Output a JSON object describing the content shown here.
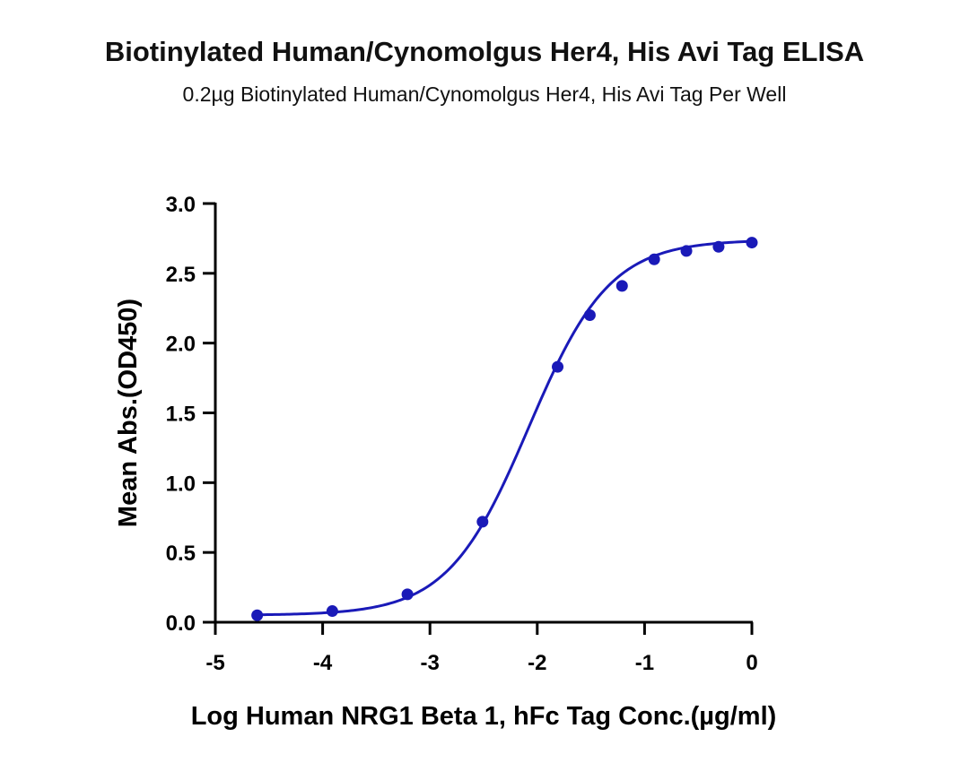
{
  "title": "Biotinylated Human/Cynomolgus Her4, His Avi Tag ELISA",
  "subtitle": "0.2µg Biotinylated Human/Cynomolgus Her4, His Avi Tag Per Well",
  "chart_data": {
    "type": "scatter",
    "title": "Biotinylated Human/Cynomolgus Her4, His Avi Tag ELISA",
    "subtitle": "0.2µg Biotinylated Human/Cynomolgus Her4, His Avi Tag Per Well",
    "xlabel": "Log Human NRG1 Beta 1, hFc Tag Conc.(µg/ml)",
    "ylabel": "Mean Abs.(OD450)",
    "xlim": [
      -5,
      0
    ],
    "ylim": [
      0,
      3.0
    ],
    "x_ticks": [
      "-5",
      "-4",
      "-3",
      "-2",
      "-1",
      "0"
    ],
    "y_ticks": [
      "0.0",
      "0.5",
      "1.0",
      "1.5",
      "2.0",
      "2.5",
      "3.0"
    ],
    "grid": false,
    "legend": "none",
    "color": "#1a1ab8",
    "series": [
      {
        "points": [
          {
            "x": -4.61,
            "y": 0.05
          },
          {
            "x": -3.91,
            "y": 0.08
          },
          {
            "x": -3.21,
            "y": 0.2
          },
          {
            "x": -2.51,
            "y": 0.72
          },
          {
            "x": -1.81,
            "y": 1.83
          },
          {
            "x": -1.51,
            "y": 2.2
          },
          {
            "x": -1.21,
            "y": 2.41
          },
          {
            "x": -0.91,
            "y": 2.6
          },
          {
            "x": -0.61,
            "y": 2.66
          },
          {
            "x": -0.31,
            "y": 2.69
          },
          {
            "x": 0.0,
            "y": 2.72
          }
        ],
        "fit": {
          "model": "4PL",
          "bottom": 0.05,
          "top": 2.74,
          "logEC50": -2.08,
          "hill": 1.15
        }
      }
    ]
  }
}
